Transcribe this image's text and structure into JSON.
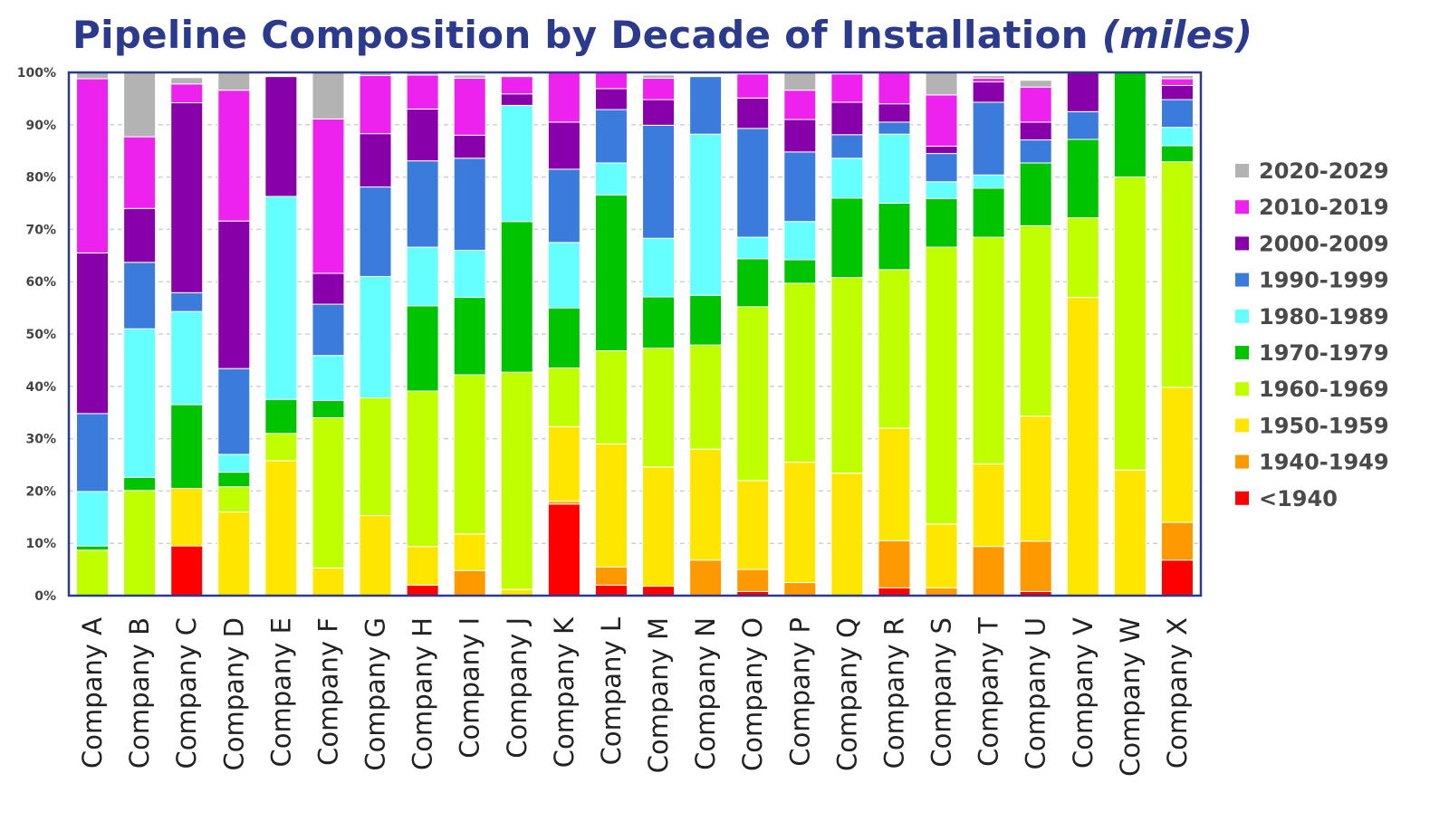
{
  "chart_data": {
    "type": "bar",
    "stacked": true,
    "title": "Pipeline Composition by Decade of Installation",
    "title_unit": "(miles)",
    "xlabel": "",
    "ylabel": "",
    "ylim": [
      0,
      100
    ],
    "yticks": [
      "0%",
      "10%",
      "20%",
      "30%",
      "40%",
      "50%",
      "60%",
      "70%",
      "80%",
      "90%",
      "100%"
    ],
    "grid": true,
    "legend_position": "right",
    "categories": [
      "Company A",
      "Company B",
      "Company C",
      "Company D",
      "Company E",
      "Company F",
      "Company G",
      "Company H",
      "Company I",
      "Company J",
      "Company K",
      "Company L",
      "Company M",
      "Company N",
      "Company O",
      "Company P",
      "Company Q",
      "Company R",
      "Company S",
      "Company T",
      "Company U",
      "Company V",
      "Company W",
      "Company X"
    ],
    "series": [
      {
        "name": "<1940",
        "color": "#ff0000",
        "values": [
          0,
          0,
          9.5,
          0,
          0,
          0,
          0,
          2,
          0,
          0,
          17.5,
          2,
          1.8,
          0,
          0.8,
          0,
          0,
          1.5,
          0,
          0,
          0.8,
          0,
          0,
          6.8
        ]
      },
      {
        "name": "1940-1949",
        "color": "#ff9900",
        "values": [
          0,
          0,
          0,
          0,
          0,
          0,
          0,
          0,
          4.8,
          0,
          0.5,
          3.5,
          0,
          6.8,
          4.2,
          2.5,
          0,
          9,
          1.5,
          9.4,
          9.6,
          0,
          0,
          7.2
        ]
      },
      {
        "name": "1950-1959",
        "color": "#ffe600",
        "values": [
          0,
          0,
          11,
          16,
          25.8,
          5.3,
          15.3,
          7.4,
          7,
          1.2,
          14.3,
          23.5,
          22.8,
          21.2,
          17,
          23,
          23.4,
          21.5,
          12.2,
          15.8,
          23.9,
          57,
          24,
          25.8
        ]
      },
      {
        "name": "1960-1969",
        "color": "#bfff00",
        "values": [
          8.7,
          20.1,
          0,
          4.8,
          5.2,
          28.7,
          22.5,
          29.7,
          30.4,
          41.5,
          11.2,
          17.8,
          22.7,
          19.9,
          33.2,
          34.2,
          37.4,
          30.3,
          52.9,
          43.3,
          36.4,
          15.2,
          56,
          43.1
        ]
      },
      {
        "name": "1970-1979",
        "color": "#00c400",
        "values": [
          0.8,
          2.5,
          16,
          2.8,
          6.5,
          3.3,
          0,
          16.3,
          14.8,
          28.8,
          11.5,
          29.8,
          9.8,
          9.5,
          9.2,
          4.5,
          15.2,
          12.7,
          9.3,
          9.4,
          12,
          15,
          20,
          3.1
        ]
      },
      {
        "name": "1980-1989",
        "color": "#66ffff",
        "values": [
          10.4,
          28.4,
          17.8,
          3.4,
          38.8,
          8.6,
          23.2,
          11.2,
          9,
          22.2,
          12.5,
          6.1,
          11.2,
          30.8,
          4.1,
          7.3,
          7.6,
          13.2,
          3.2,
          2.5,
          0,
          0,
          0,
          3.5
        ]
      },
      {
        "name": "1990-1999",
        "color": "#3a7bdb",
        "values": [
          14.9,
          12.7,
          3.6,
          16.4,
          0,
          9.8,
          17.1,
          16.5,
          17.6,
          0,
          14,
          10.2,
          21.6,
          11,
          20.8,
          13.3,
          4.5,
          2.3,
          5.4,
          13.9,
          4.4,
          5.3,
          0,
          5.3
        ]
      },
      {
        "name": "2000-2009",
        "color": "#8800aa",
        "values": [
          30.7,
          10.3,
          36.3,
          28.2,
          22.9,
          5.9,
          10.2,
          9.9,
          4.4,
          2.2,
          9,
          4,
          4.9,
          0,
          5.8,
          6.2,
          6.2,
          3.5,
          1.4,
          3.9,
          3.4,
          7.5,
          0,
          2.7
        ]
      },
      {
        "name": "2010-2019",
        "color": "#ee22ee",
        "values": [
          33.3,
          13.7,
          3.6,
          25,
          0,
          29.5,
          11.1,
          6.5,
          10.9,
          3.3,
          9.5,
          3.1,
          4.1,
          0,
          4.6,
          5.6,
          5.4,
          6,
          9.8,
          0.7,
          6.7,
          0,
          0,
          1.3
        ]
      },
      {
        "name": "2020-2029",
        "color": "#b3b3b3",
        "values": [
          1.2,
          12.3,
          1.2,
          3.4,
          0,
          8.9,
          0.6,
          0.5,
          0.6,
          0,
          0,
          0,
          0.6,
          0,
          0,
          3.6,
          0,
          0,
          4.3,
          0.5,
          1.3,
          0,
          0,
          0.6
        ]
      }
    ]
  }
}
